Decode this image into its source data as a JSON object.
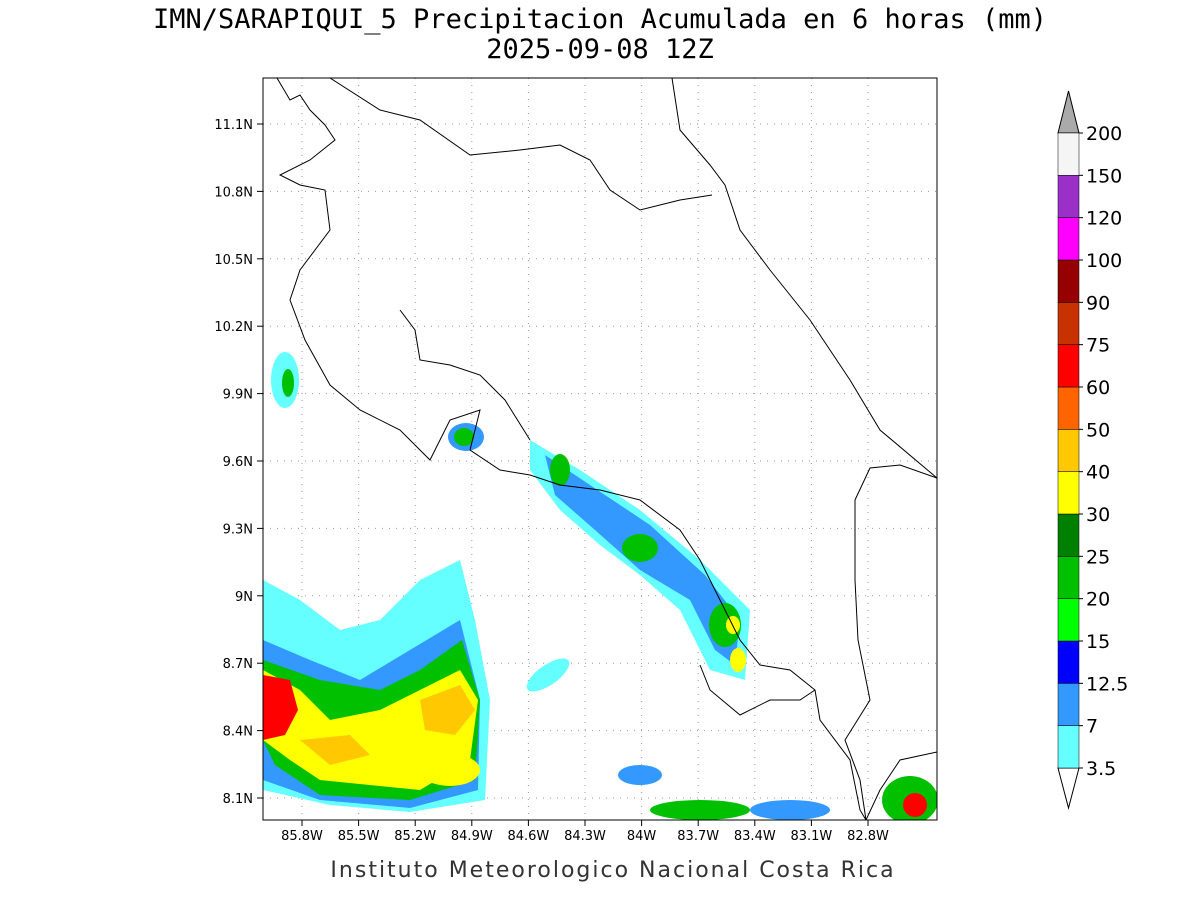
{
  "title": {
    "line1": "IMN/SARAPIQUI_5 Precipitacion Acumulada en 6 horas (mm)",
    "line2": "2025-09-08 12Z"
  },
  "footer": "Instituto Meteorologico Nacional Costa Rica",
  "lat_ticks": [
    {
      "value": 11.1,
      "label": "11.1N"
    },
    {
      "value": 10.8,
      "label": "10.8N"
    },
    {
      "value": 10.5,
      "label": "10.5N"
    },
    {
      "value": 10.2,
      "label": "10.2N"
    },
    {
      "value": 9.9,
      "label": "9.9N"
    },
    {
      "value": 9.6,
      "label": "9.6N"
    },
    {
      "value": 9.3,
      "label": "9.3N"
    },
    {
      "value": 9.0,
      "label": "9N"
    },
    {
      "value": 8.7,
      "label": "8.7N"
    },
    {
      "value": 8.4,
      "label": "8.4N"
    },
    {
      "value": 8.1,
      "label": "8.1N"
    }
  ],
  "lon_ticks": [
    {
      "value": -85.8,
      "label": "85.8W"
    },
    {
      "value": -85.5,
      "label": "85.5W"
    },
    {
      "value": -85.2,
      "label": "85.2W"
    },
    {
      "value": -84.9,
      "label": "84.9W"
    },
    {
      "value": -84.6,
      "label": "84.6W"
    },
    {
      "value": -84.3,
      "label": "84.3W"
    },
    {
      "value": -84.0,
      "label": "84W"
    },
    {
      "value": -83.7,
      "label": "83.7W"
    },
    {
      "value": -83.4,
      "label": "83.4W"
    },
    {
      "value": -83.1,
      "label": "83.1W"
    },
    {
      "value": -82.8,
      "label": "82.8W"
    }
  ],
  "colorbar": {
    "levels": [
      3.5,
      7,
      12.5,
      15,
      20,
      25,
      30,
      40,
      50,
      60,
      75,
      90,
      100,
      120,
      150,
      200
    ],
    "colors": [
      "#66ffff",
      "#3399ff",
      "#0000ff",
      "#00ff00",
      "#00c000",
      "#008000",
      "#ffff00",
      "#ffc800",
      "#ff6400",
      "#ff0000",
      "#c83200",
      "#960000",
      "#ff00ff",
      "#9b30c8",
      "#f5f5f5"
    ],
    "under_color": "#ffffff",
    "over_color": "#aaaaaa"
  }
}
